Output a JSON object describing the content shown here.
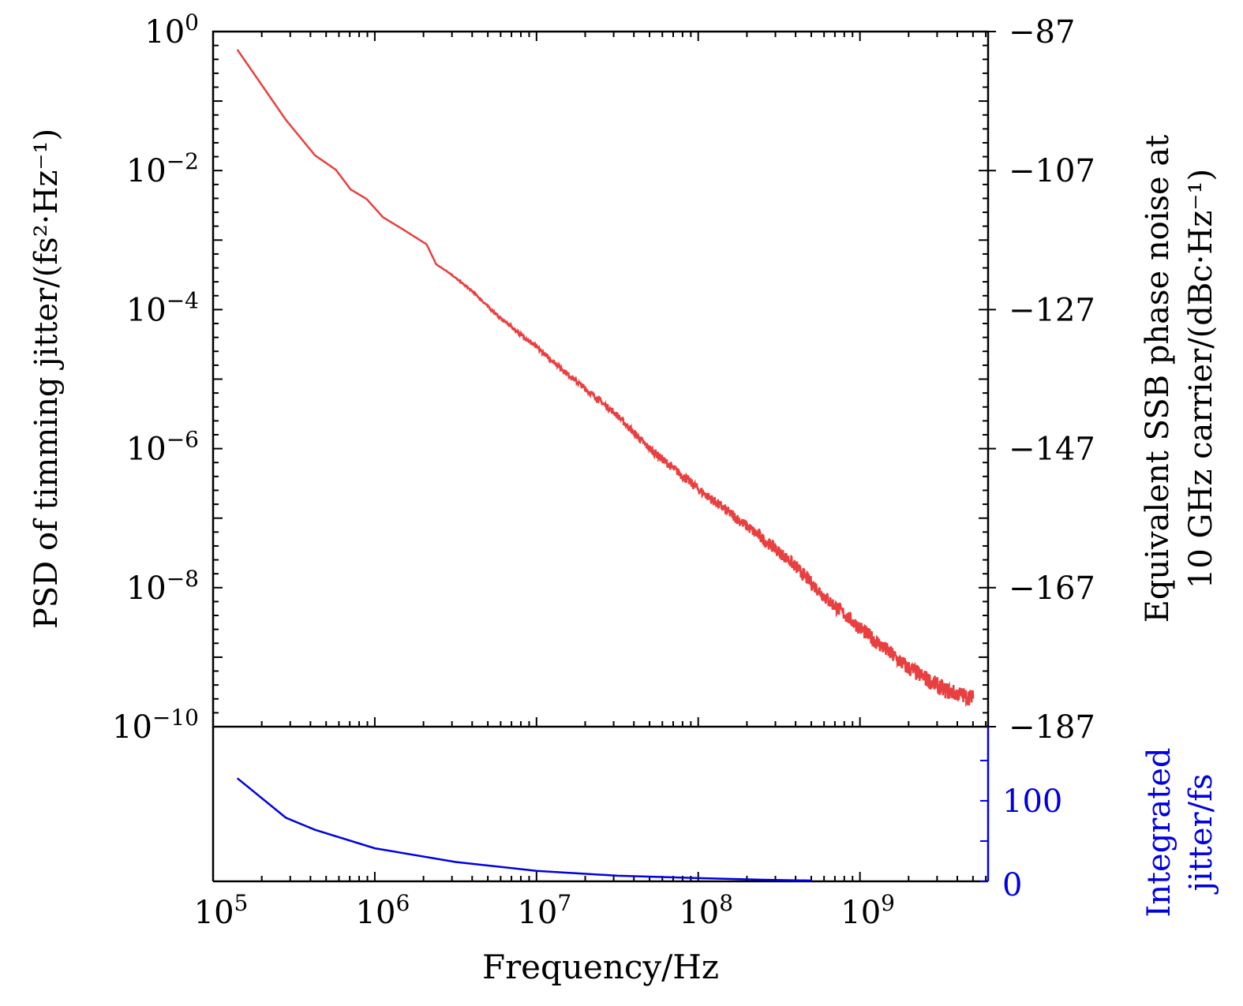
{
  "chart_data": [
    {
      "type": "line",
      "panel": "top",
      "xscale": "log",
      "yscale": "log",
      "xlim": [
        100000,
        6200000000
      ],
      "ylim": [
        1e-10,
        1
      ],
      "xlabel": "Frequency/Hz",
      "ylabel": "PSD of timming jitter/(fs²·Hz⁻¹)",
      "ytick_labels": [
        {
          "base": "10",
          "exp": "0",
          "value": 1
        },
        {
          "base": "10",
          "exp": "−2",
          "value": 0.01
        },
        {
          "base": "10",
          "exp": "−4",
          "value": 0.0001
        },
        {
          "base": "10",
          "exp": "−6",
          "value": 1e-06
        },
        {
          "base": "10",
          "exp": "−8",
          "value": 1e-08
        },
        {
          "base": "10",
          "exp": "−10",
          "value": 1e-10
        }
      ],
      "right_axis": {
        "label_line1": "Equivalent SSB phase noise at",
        "label_line2": "10 GHz carrier/(dBc·Hz⁻¹)",
        "ylim": [
          -187,
          -87
        ],
        "tick_labels": [
          "−87",
          "−107",
          "−127",
          "−147",
          "−167",
          "−187"
        ],
        "tick_values": [
          -87,
          -107,
          -127,
          -147,
          -167,
          -187
        ]
      },
      "series": [
        {
          "name": "PSD",
          "color": "#e84040",
          "log10_x": [
            5.15,
            5.45,
            5.63,
            5.76,
            5.85,
            5.95,
            6.05,
            6.17,
            6.32,
            6.38,
            6.46,
            6.61,
            6.76,
            7.0,
            7.2,
            7.49,
            7.68,
            8.0,
            8.32,
            8.56,
            8.8,
            9.05,
            9.29,
            9.53,
            9.7
          ],
          "log10_y": [
            -0.26,
            -1.27,
            -1.78,
            -1.99,
            -2.27,
            -2.41,
            -2.67,
            -2.84,
            -3.06,
            -3.35,
            -3.47,
            -3.75,
            -4.09,
            -4.54,
            -4.94,
            -5.5,
            -5.96,
            -6.58,
            -7.15,
            -7.6,
            -8.17,
            -8.68,
            -9.14,
            -9.48,
            -9.59
          ]
        }
      ]
    },
    {
      "type": "line",
      "panel": "bottom",
      "xscale": "log",
      "xlim": [
        100000,
        6200000000
      ],
      "ylim": [
        0,
        192
      ],
      "xtick_labels": [
        {
          "base": "10",
          "exp": "5",
          "value": 100000
        },
        {
          "base": "10",
          "exp": "6",
          "value": 1000000
        },
        {
          "base": "10",
          "exp": "7",
          "value": 10000000
        },
        {
          "base": "10",
          "exp": "8",
          "value": 100000000
        },
        {
          "base": "10",
          "exp": "9",
          "value": 1000000000
        }
      ],
      "right_axis": {
        "label_line1": "Integrated",
        "label_line2": "jitter/fs",
        "color": "#0000e0",
        "tick_labels": [
          "0",
          "100"
        ],
        "tick_values": [
          0,
          100
        ],
        "minor_ticks": [
          50,
          150
        ]
      },
      "series": [
        {
          "name": "Integrated jitter",
          "color": "#0000e0",
          "log10_x": [
            5.15,
            5.45,
            5.63,
            6.0,
            6.5,
            7.0,
            7.5,
            8.0,
            8.4,
            8.7
          ],
          "y": [
            128,
            79,
            64,
            41,
            24,
            13,
            7,
            4,
            2,
            1
          ]
        }
      ]
    }
  ]
}
